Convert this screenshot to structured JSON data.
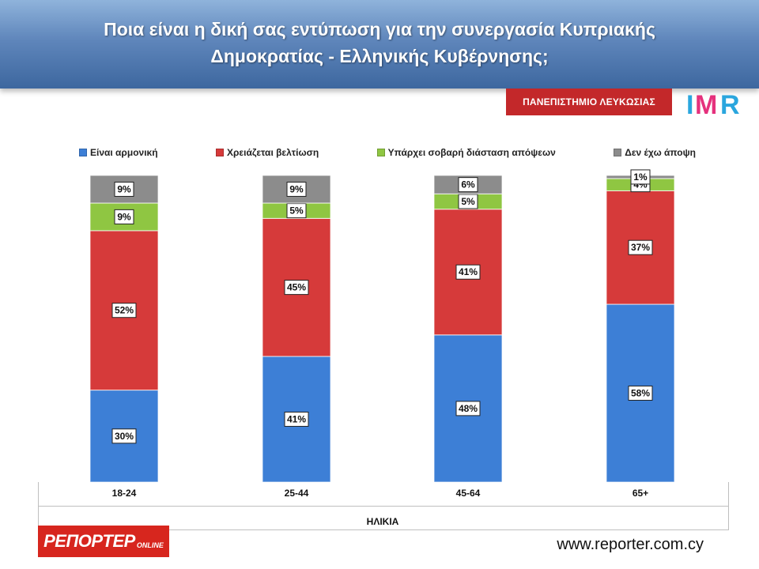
{
  "header": {
    "title_line1": "Ποια είναι η δική σας εντύπωση για την συνεργασία Κυπριακής",
    "title_line2": "Δημοκρατίας - Ελληνικής Κυβέρνησης;"
  },
  "branding": {
    "university": "ΠΑΝΕΠΙΣΤΗΜΙΟ ΛΕΥΚΩΣΙΑΣ",
    "imr": "IMR",
    "reporter_main": "ΡΕΠΟΡΤΕΡ",
    "reporter_sub": "ONLINE",
    "website": "www.reporter.com.cy"
  },
  "chart_data": {
    "type": "bar",
    "stacked": true,
    "percent_stacked": true,
    "categories": [
      "18-24",
      "25-44",
      "45-64",
      "65+"
    ],
    "xlabel": "ΗΛΙΚΙΑ",
    "ylim": [
      0,
      100
    ],
    "grid": false,
    "legend_position": "top",
    "series": [
      {
        "name": "Είναι αρμονική",
        "color": "#3d7fd6",
        "values": [
          30,
          41,
          48,
          58
        ],
        "labels": [
          "30%",
          "41%",
          "48%",
          "58%"
        ]
      },
      {
        "name": "Χρειάζεται βελτίωση",
        "color": "#d63a3a",
        "values": [
          52,
          45,
          41,
          37
        ],
        "labels": [
          "52%",
          "45%",
          "41%",
          "37%"
        ]
      },
      {
        "name": "Υπάρχει σοβαρή διάσταση απόψεων",
        "color": "#8fc642",
        "values": [
          9,
          5,
          5,
          4
        ],
        "labels": [
          "9%",
          "5%",
          "5%",
          "4%"
        ]
      },
      {
        "name": "Δεν έχω άποψη",
        "color": "#8c8c8c",
        "values": [
          9,
          9,
          6,
          1
        ],
        "labels": [
          "9%",
          "9%",
          "6%",
          "1%"
        ]
      }
    ]
  }
}
